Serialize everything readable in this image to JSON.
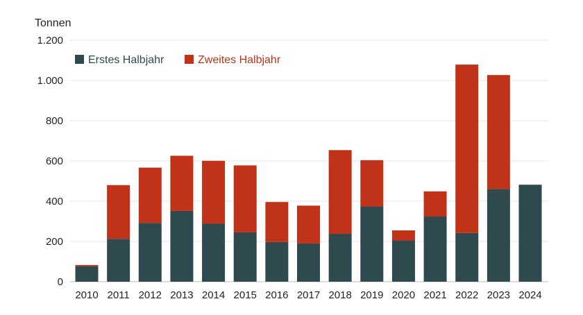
{
  "chart_data": {
    "type": "bar",
    "stacked": true,
    "ylabel": "Tonnen",
    "ylim": [
      0,
      1200
    ],
    "yticks": [
      0,
      200,
      400,
      600,
      800,
      1000,
      1200
    ],
    "ytick_labels": [
      "0",
      "200",
      "400",
      "600",
      "800",
      "1.000",
      "1.200"
    ],
    "grid": true,
    "legend_position": "top-left",
    "categories": [
      "2010",
      "2011",
      "2012",
      "2013",
      "2014",
      "2015",
      "2016",
      "2017",
      "2018",
      "2019",
      "2020",
      "2021",
      "2022",
      "2023",
      "2024"
    ],
    "series": [
      {
        "name": "Erstes Halbjahr",
        "color": "#2e4a4e",
        "values": [
          77,
          213,
          292,
          352,
          288,
          245,
          197,
          190,
          238,
          374,
          205,
          324,
          242,
          460,
          482
        ]
      },
      {
        "name": "Zweites Halbjahr",
        "color": "#c03318",
        "values": [
          6,
          267,
          275,
          274,
          313,
          333,
          199,
          188,
          416,
          230,
          50,
          125,
          837,
          567,
          0
        ]
      }
    ]
  }
}
